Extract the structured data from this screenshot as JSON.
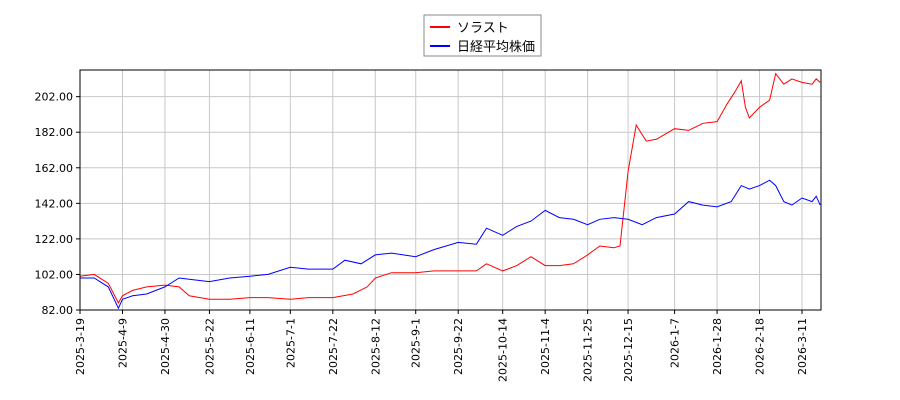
{
  "chart_data": {
    "type": "line",
    "title": "",
    "xlabel": "",
    "ylabel": "",
    "ylim": [
      82,
      217
    ],
    "xlim": [
      "2025-03-19",
      "2026-03-20"
    ],
    "grid": true,
    "legend_placement": "top-center",
    "y_ticks": [
      "82.00",
      "102.00",
      "122.00",
      "142.00",
      "162.00",
      "182.00",
      "202.00"
    ],
    "x_ticks": [
      "2025-3-19",
      "2025-4-9",
      "2025-4-30",
      "2025-5-22",
      "2025-6-11",
      "2025-7-1",
      "2025-7-22",
      "2025-8-12",
      "2025-9-1",
      "2025-9-22",
      "2025-10-14",
      "2025-11-4",
      "2025-11-25",
      "2025-12-15",
      "2026-1-7",
      "2026-1-28",
      "2026-2-18",
      "2026-3-11"
    ],
    "series": [
      {
        "name": "ソラスト",
        "color": "#ff0000",
        "points": [
          [
            "2025-03-19",
            101
          ],
          [
            "2025-03-26",
            102
          ],
          [
            "2025-04-02",
            97
          ],
          [
            "2025-04-07",
            86
          ],
          [
            "2025-04-09",
            90
          ],
          [
            "2025-04-14",
            93
          ],
          [
            "2025-04-21",
            95
          ],
          [
            "2025-04-30",
            96
          ],
          [
            "2025-05-07",
            95
          ],
          [
            "2025-05-12",
            90
          ],
          [
            "2025-05-22",
            88
          ],
          [
            "2025-06-01",
            88
          ],
          [
            "2025-06-11",
            89
          ],
          [
            "2025-06-20",
            89
          ],
          [
            "2025-07-01",
            88
          ],
          [
            "2025-07-10",
            89
          ],
          [
            "2025-07-22",
            89
          ],
          [
            "2025-08-01",
            91
          ],
          [
            "2025-08-08",
            95
          ],
          [
            "2025-08-12",
            100
          ],
          [
            "2025-08-20",
            103
          ],
          [
            "2025-09-01",
            103
          ],
          [
            "2025-09-10",
            104
          ],
          [
            "2025-09-22",
            104
          ],
          [
            "2025-10-01",
            104
          ],
          [
            "2025-10-06",
            108
          ],
          [
            "2025-10-14",
            104
          ],
          [
            "2025-10-21",
            107
          ],
          [
            "2025-10-28",
            112
          ],
          [
            "2025-11-04",
            107
          ],
          [
            "2025-11-11",
            107
          ],
          [
            "2025-11-18",
            108
          ],
          [
            "2025-11-25",
            113
          ],
          [
            "2025-12-01",
            118
          ],
          [
            "2025-12-08",
            117
          ],
          [
            "2025-12-11",
            118
          ],
          [
            "2025-12-15",
            160
          ],
          [
            "2025-12-19",
            186
          ],
          [
            "2025-12-24",
            177
          ],
          [
            "2025-12-29",
            178
          ],
          [
            "2026-01-07",
            184
          ],
          [
            "2026-01-14",
            183
          ],
          [
            "2026-01-21",
            187
          ],
          [
            "2026-01-28",
            188
          ],
          [
            "2026-02-02",
            198
          ],
          [
            "2026-02-06",
            205
          ],
          [
            "2026-02-09",
            211
          ],
          [
            "2026-02-11",
            196
          ],
          [
            "2026-02-13",
            190
          ],
          [
            "2026-02-18",
            196
          ],
          [
            "2026-02-23",
            200
          ],
          [
            "2026-02-26",
            215
          ],
          [
            "2026-03-02",
            209
          ],
          [
            "2026-03-06",
            212
          ],
          [
            "2026-03-11",
            210
          ],
          [
            "2026-03-16",
            209
          ],
          [
            "2026-03-18",
            212
          ],
          [
            "2026-03-20",
            210
          ]
        ]
      },
      {
        "name": "日経平均株価",
        "color": "#0000ff",
        "points": [
          [
            "2025-03-19",
            100
          ],
          [
            "2025-03-26",
            100
          ],
          [
            "2025-04-02",
            95
          ],
          [
            "2025-04-07",
            83
          ],
          [
            "2025-04-09",
            88
          ],
          [
            "2025-04-14",
            90
          ],
          [
            "2025-04-21",
            91
          ],
          [
            "2025-04-30",
            95
          ],
          [
            "2025-05-07",
            100
          ],
          [
            "2025-05-14",
            99
          ],
          [
            "2025-05-22",
            98
          ],
          [
            "2025-06-01",
            100
          ],
          [
            "2025-06-11",
            101
          ],
          [
            "2025-06-20",
            102
          ],
          [
            "2025-07-01",
            106
          ],
          [
            "2025-07-10",
            105
          ],
          [
            "2025-07-22",
            105
          ],
          [
            "2025-07-28",
            110
          ],
          [
            "2025-08-05",
            108
          ],
          [
            "2025-08-12",
            113
          ],
          [
            "2025-08-20",
            114
          ],
          [
            "2025-09-01",
            112
          ],
          [
            "2025-09-10",
            116
          ],
          [
            "2025-09-22",
            120
          ],
          [
            "2025-10-01",
            119
          ],
          [
            "2025-10-06",
            128
          ],
          [
            "2025-10-14",
            124
          ],
          [
            "2025-10-21",
            129
          ],
          [
            "2025-10-28",
            132
          ],
          [
            "2025-11-04",
            138
          ],
          [
            "2025-11-11",
            134
          ],
          [
            "2025-11-18",
            133
          ],
          [
            "2025-11-25",
            130
          ],
          [
            "2025-12-01",
            133
          ],
          [
            "2025-12-08",
            134
          ],
          [
            "2025-12-15",
            133
          ],
          [
            "2025-12-22",
            130
          ],
          [
            "2025-12-29",
            134
          ],
          [
            "2026-01-07",
            136
          ],
          [
            "2026-01-14",
            143
          ],
          [
            "2026-01-21",
            141
          ],
          [
            "2026-01-28",
            140
          ],
          [
            "2026-02-04",
            143
          ],
          [
            "2026-02-09",
            152
          ],
          [
            "2026-02-13",
            150
          ],
          [
            "2026-02-18",
            152
          ],
          [
            "2026-02-23",
            155
          ],
          [
            "2026-02-26",
            152
          ],
          [
            "2026-03-02",
            143
          ],
          [
            "2026-03-06",
            141
          ],
          [
            "2026-03-11",
            145
          ],
          [
            "2026-03-16",
            143
          ],
          [
            "2026-03-18",
            146
          ],
          [
            "2026-03-20",
            141
          ]
        ]
      }
    ]
  }
}
